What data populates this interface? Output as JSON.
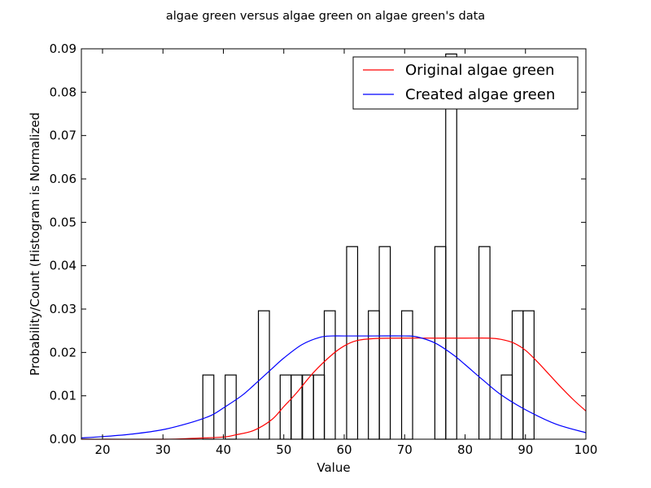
{
  "chart_data": {
    "type": "bar",
    "title": "algae green versus algae green on algae green's data",
    "xlabel": "Value",
    "ylabel": "Probability/Count (Histogram is Normalized",
    "xlim": [
      16.5,
      100
    ],
    "ylim": [
      0,
      0.09
    ],
    "xticks": [
      20,
      30,
      40,
      50,
      60,
      70,
      80,
      90,
      100
    ],
    "yticks": [
      0.0,
      0.01,
      0.02,
      0.03,
      0.04,
      0.05,
      0.06,
      0.07,
      0.08,
      0.09
    ],
    "ytick_labels": [
      "0.00",
      "0.01",
      "0.02",
      "0.03",
      "0.04",
      "0.05",
      "0.06",
      "0.07",
      "0.08",
      "0.09"
    ],
    "grid": false,
    "legend_position": "top-right",
    "histogram": {
      "bin_width": 1.82,
      "bins": [
        {
          "left": 36.6,
          "value": 0.0148
        },
        {
          "left": 40.3,
          "value": 0.0148
        },
        {
          "left": 45.8,
          "value": 0.0296
        },
        {
          "left": 49.4,
          "value": 0.0148
        },
        {
          "left": 51.2,
          "value": 0.0148
        },
        {
          "left": 53.1,
          "value": 0.0148
        },
        {
          "left": 54.9,
          "value": 0.0148
        },
        {
          "left": 56.7,
          "value": 0.0296
        },
        {
          "left": 60.4,
          "value": 0.0444
        },
        {
          "left": 64.0,
          "value": 0.0296
        },
        {
          "left": 65.8,
          "value": 0.0444
        },
        {
          "left": 69.5,
          "value": 0.0296
        },
        {
          "left": 75.0,
          "value": 0.0444
        },
        {
          "left": 76.8,
          "value": 0.0888
        },
        {
          "left": 82.3,
          "value": 0.0444
        },
        {
          "left": 86.0,
          "value": 0.0148
        },
        {
          "left": 87.8,
          "value": 0.0296
        },
        {
          "left": 89.6,
          "value": 0.0296
        }
      ]
    },
    "series": [
      {
        "name": "Original algae green",
        "color": "#ff0000",
        "x": [
          16.5,
          30,
          35,
          40,
          42,
          45,
          48,
          50,
          52,
          55,
          58,
          60,
          62,
          65,
          70,
          75,
          80,
          84,
          86,
          88,
          90,
          92,
          94,
          96,
          98,
          100
        ],
        "y": [
          0.0,
          0.0,
          0.0002,
          0.0005,
          0.001,
          0.002,
          0.0045,
          0.0075,
          0.0105,
          0.0155,
          0.0195,
          0.0215,
          0.0227,
          0.0232,
          0.0233,
          0.0233,
          0.0233,
          0.0233,
          0.023,
          0.0222,
          0.0205,
          0.0178,
          0.0148,
          0.0118,
          0.009,
          0.0065
        ]
      },
      {
        "name": "Created algae green",
        "color": "#0000ff",
        "x": [
          16.5,
          20,
          25,
          30,
          35,
          38,
          40,
          43,
          45,
          48,
          50,
          53,
          56,
          58,
          60,
          65,
          70,
          72,
          75,
          78,
          80,
          83,
          86,
          90,
          95,
          100
        ],
        "y": [
          0.0003,
          0.0006,
          0.0012,
          0.0022,
          0.004,
          0.0055,
          0.0072,
          0.01,
          0.0124,
          0.0162,
          0.0187,
          0.0218,
          0.0235,
          0.0238,
          0.0238,
          0.0238,
          0.0238,
          0.0236,
          0.0222,
          0.0195,
          0.0172,
          0.0136,
          0.0102,
          0.0068,
          0.0035,
          0.0015
        ]
      }
    ]
  }
}
